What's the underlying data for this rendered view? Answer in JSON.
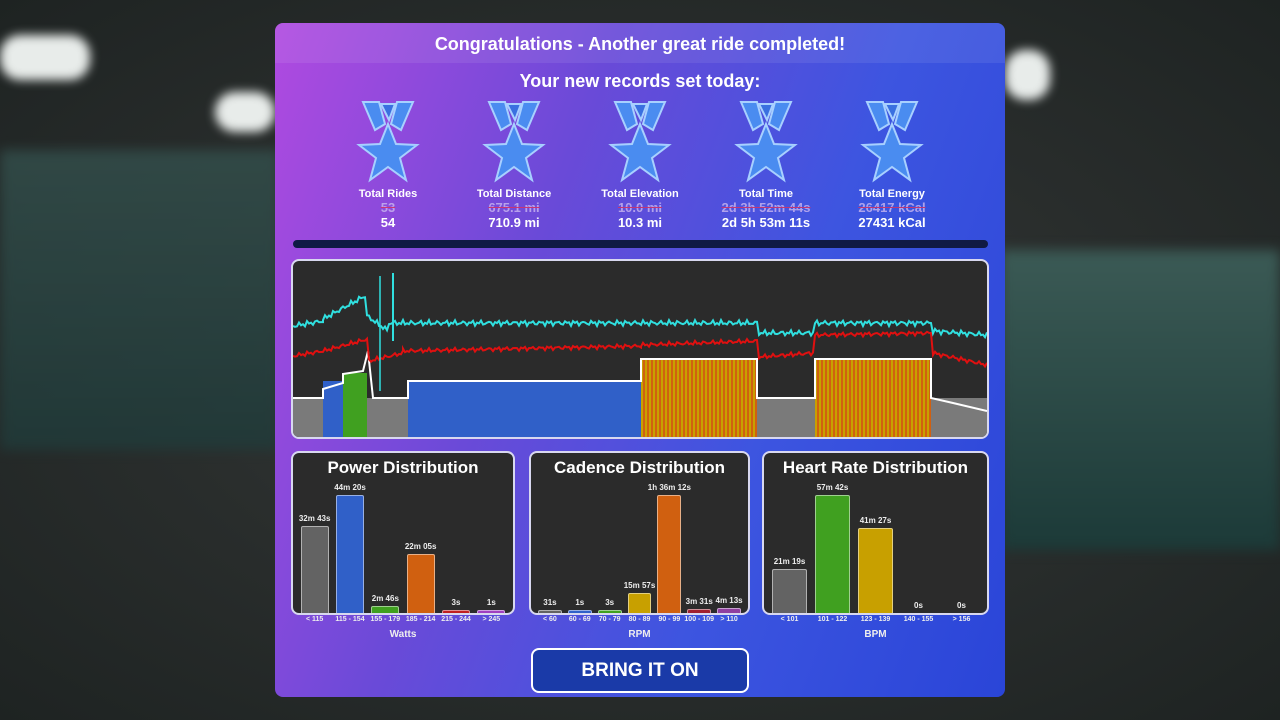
{
  "header": {
    "title": "Congratulations - Another great ride completed!",
    "subtitle": "Your new records set today:"
  },
  "records": [
    {
      "label": "Total Rides",
      "old": "53",
      "new": "54"
    },
    {
      "label": "Total Distance",
      "old": "675.1 mi",
      "new": "710.9 mi"
    },
    {
      "label": "Total Elevation",
      "old": "10.0 mi",
      "new": "10.3 mi"
    },
    {
      "label": "Total Time",
      "old": "2d 3h 52m 44s",
      "new": "2d 5h 53m 11s"
    },
    {
      "label": "Total Energy",
      "old": "26417 kCal",
      "new": "27431 kCal"
    }
  ],
  "colors": {
    "heart_rate_line": "#e01010",
    "cadence_line": "#30e0e0",
    "power_line": "#ffffff",
    "zone_gray": "#7a7a7a",
    "zone_blue": "#3060c8",
    "zone_green": "#40a020",
    "zone_yellow": "#c8a000",
    "zone_orange": "#d06010"
  },
  "distributions": [
    {
      "title": "Power Distribution",
      "unit": "Watts",
      "bins": [
        {
          "label": "< 115",
          "value": "32m 43s",
          "seconds": 1963,
          "color": "#636363"
        },
        {
          "label": "115 - 154",
          "value": "44m 20s",
          "seconds": 2660,
          "color": "#3060c8"
        },
        {
          "label": "155 - 179",
          "value": "2m 46s",
          "seconds": 166,
          "color": "#40a020"
        },
        {
          "label": "185 - 214",
          "value": "22m 05s",
          "seconds": 1325,
          "color": "#d06010"
        },
        {
          "label": "215 - 244",
          "value": "3s",
          "seconds": 3,
          "color": "#c02020"
        },
        {
          "label": "> 245",
          "value": "1s",
          "seconds": 1,
          "color": "#a040c0"
        }
      ]
    },
    {
      "title": "Cadence Distribution",
      "unit": "RPM",
      "bins": [
        {
          "label": "< 60",
          "value": "31s",
          "seconds": 31,
          "color": "#636363"
        },
        {
          "label": "60 - 69",
          "value": "1s",
          "seconds": 1,
          "color": "#3060c8"
        },
        {
          "label": "70 - 79",
          "value": "3s",
          "seconds": 3,
          "color": "#40a020"
        },
        {
          "label": "80 - 89",
          "value": "15m 57s",
          "seconds": 957,
          "color": "#c8a000"
        },
        {
          "label": "90 - 99",
          "value": "1h 36m 12s",
          "seconds": 5772,
          "color": "#d06010"
        },
        {
          "label": "100 - 109",
          "value": "3m 31s",
          "seconds": 211,
          "color": "#a02030"
        },
        {
          "label": "> 110",
          "value": "4m 13s",
          "seconds": 253,
          "color": "#9040a0"
        }
      ]
    },
    {
      "title": "Heart Rate Distribution",
      "unit": "BPM",
      "bins": [
        {
          "label": "< 101",
          "value": "21m 19s",
          "seconds": 1279,
          "color": "#636363"
        },
        {
          "label": "101 - 122",
          "value": "57m 42s",
          "seconds": 3462,
          "color": "#40a020"
        },
        {
          "label": "123 - 139",
          "value": "41m 27s",
          "seconds": 2487,
          "color": "#c8a000"
        },
        {
          "label": "140 - 155",
          "value": "0s",
          "seconds": 0,
          "color": "#d06010"
        },
        {
          "label": "> 156",
          "value": "0s",
          "seconds": 0,
          "color": "#c02020"
        }
      ]
    }
  ],
  "button": {
    "label": "BRING IT ON"
  }
}
